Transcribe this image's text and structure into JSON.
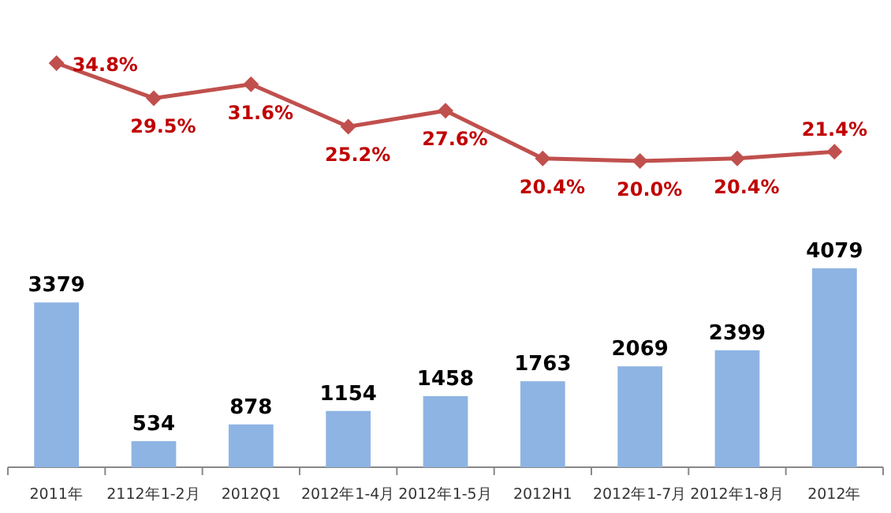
{
  "chart_data": [
    {
      "type": "line",
      "categories": [
        null,
        null,
        null,
        null,
        null,
        null,
        null,
        null,
        null
      ],
      "series": [
        {
          "color": "#c0504d",
          "marker": "diamond",
          "values": [
            34.8,
            29.5,
            31.6,
            25.2,
            27.6,
            20.4,
            20.0,
            20.4,
            21.4
          ],
          "value_labels": [
            "34.8%",
            "29.5%",
            "31.6%",
            "25.2%",
            "27.6%",
            "20.4%",
            "20.0%",
            "20.4%",
            "21.4%"
          ]
        }
      ]
    },
    {
      "type": "bar",
      "categories": [
        "2011年",
        "2112年1-2月",
        "2012Q1",
        "2012年1-4月",
        "2012年1-5月",
        "2012H1",
        "2012年1-7月",
        "2012年1-8月",
        "2012年"
      ],
      "series": [
        {
          "color": "#8eb4e3",
          "values": [
            3379,
            534,
            878,
            1154,
            1458,
            1763,
            2069,
            2399,
            4079
          ]
        }
      ],
      "data_labels": true
    }
  ]
}
